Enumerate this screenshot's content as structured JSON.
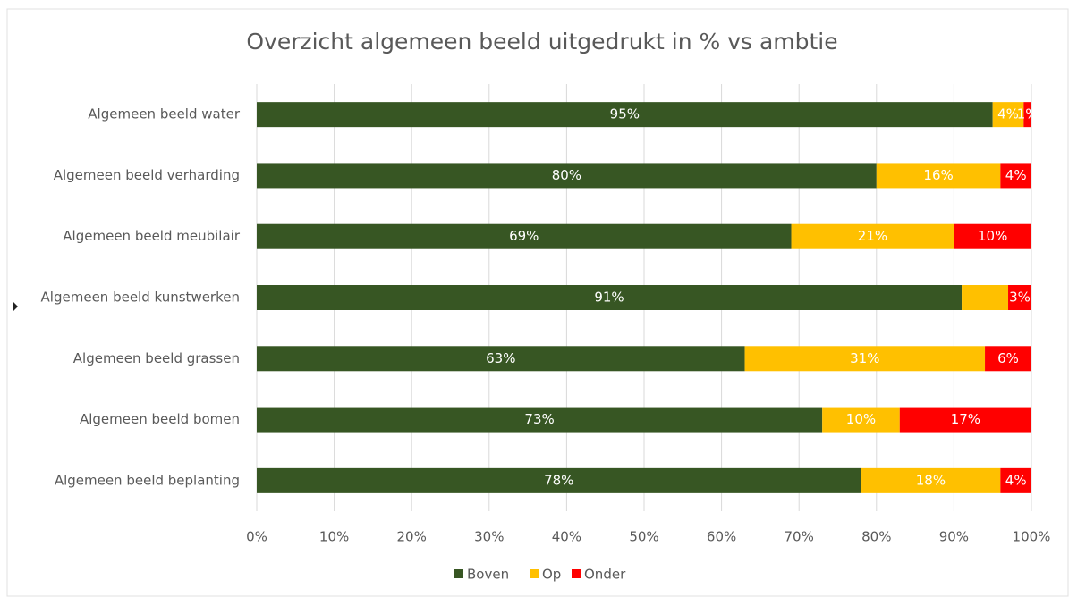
{
  "chart_data": {
    "type": "stacked-bar-horizontal",
    "title": "Overzicht algemeen beeld uitgedrukt in % vs ambtie",
    "categories": [
      "Algemeen beeld water",
      "Algemeen beeld verharding",
      "Algemeen beeld meubilair",
      "Algemeen beeld kunstwerken",
      "Algemeen beeld grassen",
      "Algemeen beeld bomen",
      "Algemeen beeld beplanting"
    ],
    "series": [
      {
        "name": "Boven",
        "color": "#375623",
        "values": [
          95,
          80,
          69,
          91,
          63,
          73,
          78
        ],
        "value_labels": [
          "95%",
          "80%",
          "69%",
          "91%",
          "63%",
          "73%",
          "78%"
        ]
      },
      {
        "name": "Op",
        "color": "#ffc000",
        "values": [
          4,
          16,
          21,
          6,
          31,
          10,
          18
        ],
        "value_labels": [
          "4%",
          "16%",
          "21%",
          null,
          "31%",
          "10%",
          "18%"
        ]
      },
      {
        "name": "Onder",
        "color": "#ff0000",
        "values": [
          1,
          4,
          10,
          3,
          6,
          17,
          4
        ],
        "value_labels": [
          "1%",
          "4%",
          "10%",
          "3%",
          "6%",
          "17%",
          "4%"
        ]
      }
    ],
    "xlim": [
      0,
      100
    ],
    "xticks": [
      {
        "value": 0,
        "label": "0%"
      },
      {
        "value": 10,
        "label": "10%"
      },
      {
        "value": 20,
        "label": "20%"
      },
      {
        "value": 30,
        "label": "30%"
      },
      {
        "value": 40,
        "label": "40%"
      },
      {
        "value": 50,
        "label": "50%"
      },
      {
        "value": 60,
        "label": "60%"
      },
      {
        "value": 70,
        "label": "70%"
      },
      {
        "value": 80,
        "label": "80%"
      },
      {
        "value": 90,
        "label": "90%"
      },
      {
        "value": 100,
        "label": "100%"
      }
    ],
    "grid": true
  }
}
